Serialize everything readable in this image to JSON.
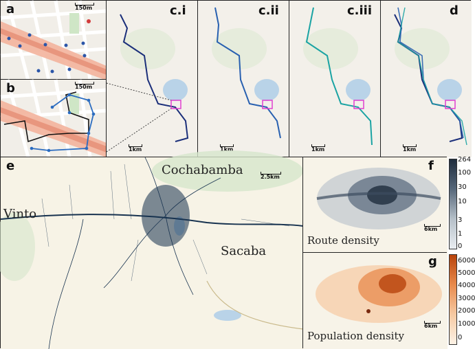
{
  "panels": {
    "a": {
      "label": "a",
      "scale": "150m"
    },
    "b": {
      "label": "b",
      "scale": "150m"
    },
    "ci": {
      "label": "c.i",
      "scale": "1km"
    },
    "cii": {
      "label": "c.ii",
      "scale": "1km"
    },
    "ciii": {
      "label": "c.iii",
      "scale": "1km"
    },
    "d": {
      "label": "d",
      "scale": "1km"
    },
    "e": {
      "label": "e",
      "scale": "2.5km"
    },
    "f": {
      "label": "f",
      "scale": "6km",
      "caption": "Route density"
    },
    "g": {
      "label": "g",
      "scale": "6km",
      "caption": "Population density"
    }
  },
  "places": {
    "cochabamba": "Cochabamba",
    "vinto": "Vinto",
    "sacaba": "Sacaba"
  },
  "colorbars": {
    "route": {
      "ticks": [
        "264",
        "100",
        "30",
        "10",
        "3",
        "1",
        "0"
      ],
      "colors": [
        "#1f2d3d",
        "#e9edf1"
      ]
    },
    "population": {
      "ticks": [
        "6000",
        "5000",
        "4000",
        "3000",
        "2000",
        "1000",
        "0"
      ],
      "colors": [
        "#b8430c",
        "#fdf2e6"
      ]
    }
  },
  "colors": {
    "route_dark": "#1b2f7a",
    "route_mid": "#2860b0",
    "route_teal": "#1aa3a3",
    "highlight_box": "#e040d0",
    "network": "#17324f"
  }
}
